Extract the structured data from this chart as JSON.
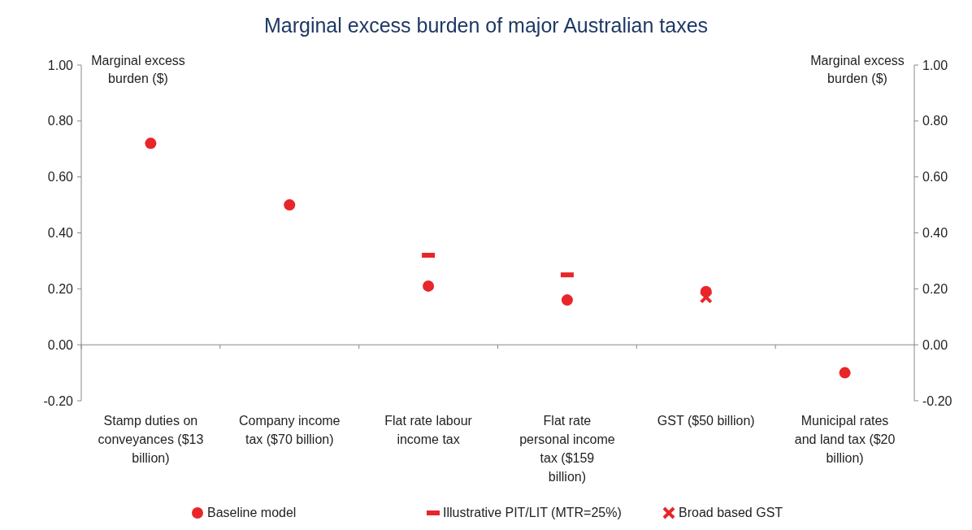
{
  "chart_data": {
    "type": "scatter",
    "title": "Marginal excess burden of major Australian taxes",
    "ylabel": "Marginal excess burden ($)",
    "y2label": "Marginal excess burden ($)",
    "categories": [
      "Stamp duties on conveyances ($13 billion)",
      "Company income tax ($70 billion)",
      "Flat rate labour income tax",
      "Flat rate personal income tax ($159 billion)",
      "GST ($50 billion)",
      "Municipal rates and land tax ($20 billion)"
    ],
    "series": [
      {
        "name": "Baseline model",
        "color": "#e8262a",
        "marker": "circle",
        "values": [
          0.72,
          0.5,
          0.21,
          0.16,
          0.19,
          -0.1
        ]
      },
      {
        "name": "Illustrative PIT/LIT (MTR=25%)",
        "color": "#e8262a",
        "marker": "square",
        "values": [
          null,
          null,
          0.32,
          0.25,
          null,
          null
        ]
      },
      {
        "name": "Broad based GST",
        "color": "#e8262a",
        "marker": "cross",
        "values": [
          null,
          null,
          null,
          null,
          0.17,
          null
        ]
      }
    ],
    "ylim": [
      -0.2,
      1.0
    ],
    "yticks": [
      {
        "value": -0.2,
        "label": "-0.20"
      },
      {
        "value": 0,
        "label": "0.00"
      },
      {
        "value": 0.2,
        "label": "0.20"
      },
      {
        "value": 0.4,
        "label": "0.40"
      },
      {
        "value": 0.6,
        "label": "0.60"
      },
      {
        "value": 0.8,
        "label": "0.80"
      },
      {
        "value": 1.0,
        "label": "1.00"
      }
    ],
    "y2lim": [
      -0.2,
      1.0
    ],
    "y2ticks": [
      {
        "value": -0.2,
        "label": "-0.20"
      },
      {
        "value": 0,
        "label": "0.00"
      },
      {
        "value": 0.2,
        "label": "0.20"
      },
      {
        "value": 0.4,
        "label": "0.40"
      },
      {
        "value": 0.6,
        "label": "0.60"
      },
      {
        "value": 0.8,
        "label": "0.80"
      },
      {
        "value": 1.0,
        "label": "1.00"
      }
    ],
    "legend": "bottom"
  }
}
